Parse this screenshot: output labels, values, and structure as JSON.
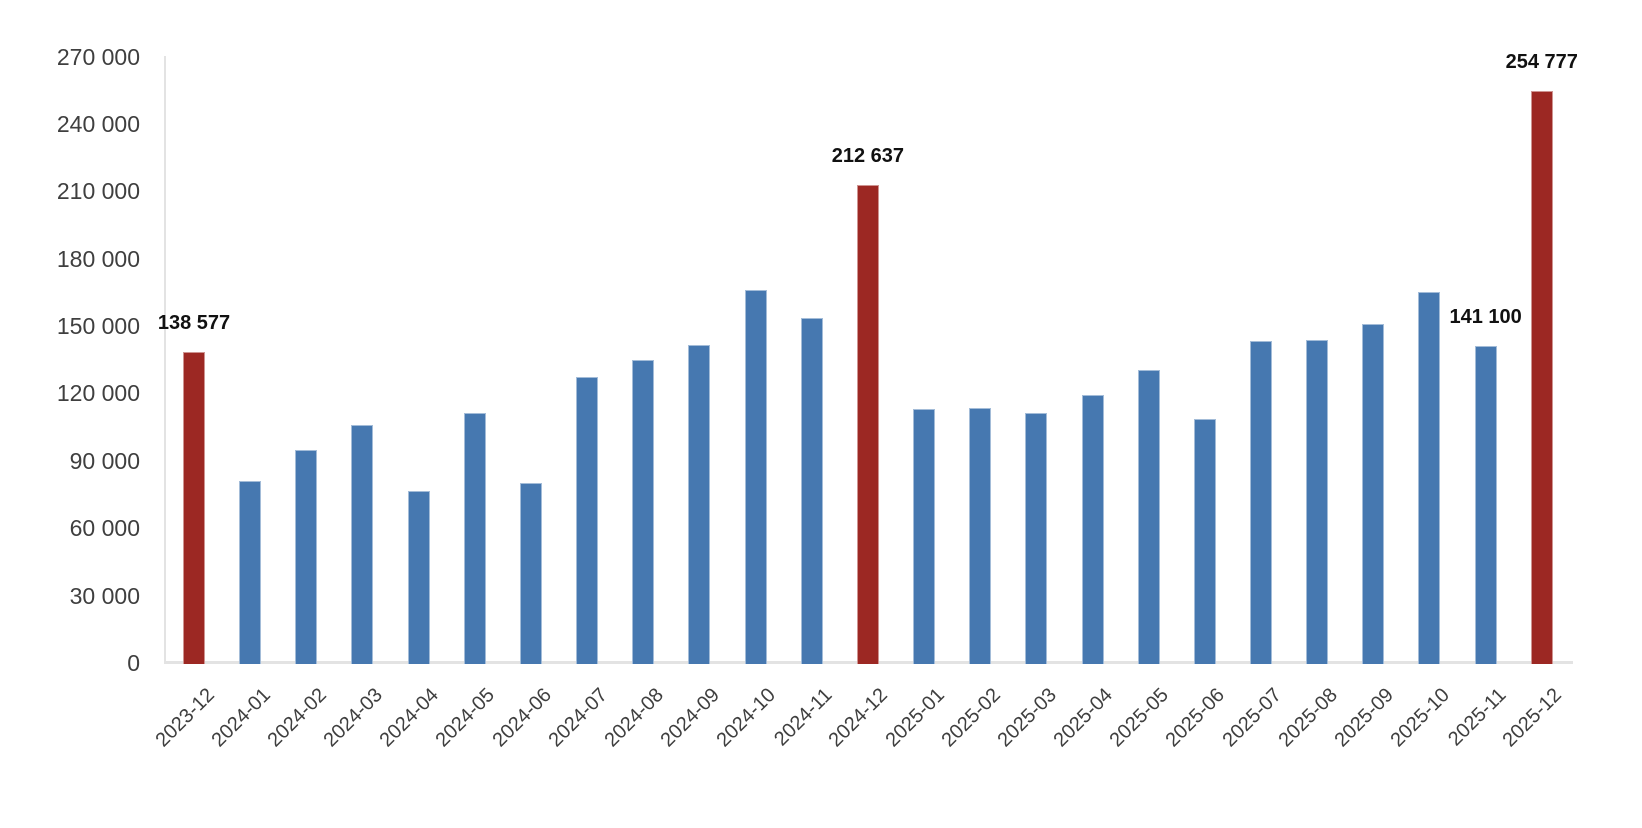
{
  "chart_data": {
    "type": "bar",
    "title": "",
    "xlabel": "",
    "ylabel": "",
    "grid": false,
    "legend": false,
    "ylim": [
      0,
      270000
    ],
    "yticks": {
      "values": [
        0,
        30000,
        60000,
        90000,
        120000,
        150000,
        180000,
        210000,
        240000,
        270000
      ],
      "labels": [
        "0",
        "30 000",
        "60 000",
        "90 000",
        "120 000",
        "150 000",
        "180 000",
        "210 000",
        "240 000",
        "270 000"
      ]
    },
    "categories": [
      "2023-12",
      "2024-01",
      "2024-02",
      "2024-03",
      "2024-04",
      "2024-05",
      "2024-06",
      "2024-07",
      "2024-08",
      "2024-09",
      "2024-10",
      "2024-11",
      "2024-12",
      "2025-01",
      "2025-02",
      "2025-03",
      "2025-04",
      "2025-05",
      "2025-06",
      "2025-07",
      "2025-08",
      "2025-09",
      "2025-10",
      "2025-11",
      "2025-12"
    ],
    "values": [
      138577,
      81000,
      95000,
      106000,
      76500,
      111500,
      80000,
      127500,
      135000,
      141500,
      166000,
      153500,
      212637,
      113000,
      113500,
      111500,
      119500,
      130500,
      108500,
      143500,
      144000,
      151000,
      165000,
      141100,
      254777
    ],
    "highlight_indices": [
      0,
      12,
      24
    ],
    "data_labels": {
      "0": "138 577",
      "12": "212 637",
      "23": "141 100",
      "24": "254 777"
    },
    "colors": {
      "bar": "#4678B0",
      "highlight": "#9C2823",
      "axis_line": "#E3E3E3",
      "tick_text": "#3F3F3F",
      "label_text": "#111111"
    }
  }
}
